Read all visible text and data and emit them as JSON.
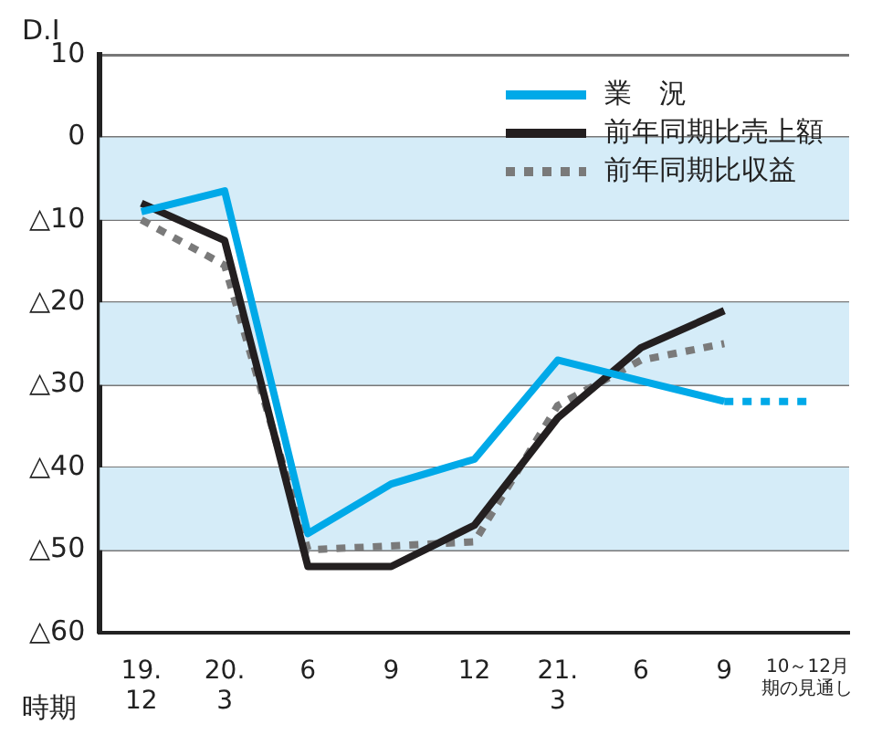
{
  "chart_data": {
    "type": "line",
    "ylabel": "D.I",
    "xlabel": "時期",
    "categories": [
      "19.\n12",
      "20.\n3",
      "6",
      "9",
      "12",
      "21.\n3",
      "6",
      "9",
      "10～12月期の見通し"
    ],
    "series": [
      {
        "name": "業　況",
        "color": "#00a9e8",
        "line_style": "solid",
        "values": [
          -9,
          -6.5,
          -48,
          -42,
          -39,
          -27,
          -29.5,
          -32,
          null
        ]
      },
      {
        "name": "前年同期比売上額",
        "color": "#231f20",
        "line_style": "solid",
        "values": [
          -8,
          -12.5,
          -52,
          -52,
          -47,
          -34,
          -25.5,
          -21,
          null
        ]
      },
      {
        "name": "前年同期比収益",
        "color": "#7a7a7a",
        "line_style": "dotted",
        "values": [
          -10,
          -15.5,
          -50,
          -49.5,
          -49,
          -32.5,
          -27,
          -25,
          null
        ]
      },
      {
        "color": "#00a9e8",
        "line_style": "dotted",
        "values": [
          null,
          null,
          null,
          null,
          null,
          null,
          null,
          -32,
          -32
        ]
      }
    ],
    "ylim": [
      -60,
      10
    ],
    "yticks": [
      {
        "value": -60,
        "label": "△60"
      },
      {
        "value": -50,
        "label": "△50"
      },
      {
        "value": -40,
        "label": "△40"
      },
      {
        "value": -30,
        "label": "△30"
      },
      {
        "value": -20,
        "label": "△20"
      },
      {
        "value": -10,
        "label": "△10"
      },
      0,
      10
    ],
    "bands": [
      {
        "axis": "y",
        "from": -10,
        "to": 0,
        "color": "#d5ecf8"
      },
      {
        "axis": "y",
        "from": -30,
        "to": -20,
        "color": "#d5ecf8"
      },
      {
        "axis": "y",
        "from": -50,
        "to": -40,
        "color": "#d5ecf8"
      }
    ],
    "grid": "y",
    "marker": "none",
    "legend": "top right"
  }
}
